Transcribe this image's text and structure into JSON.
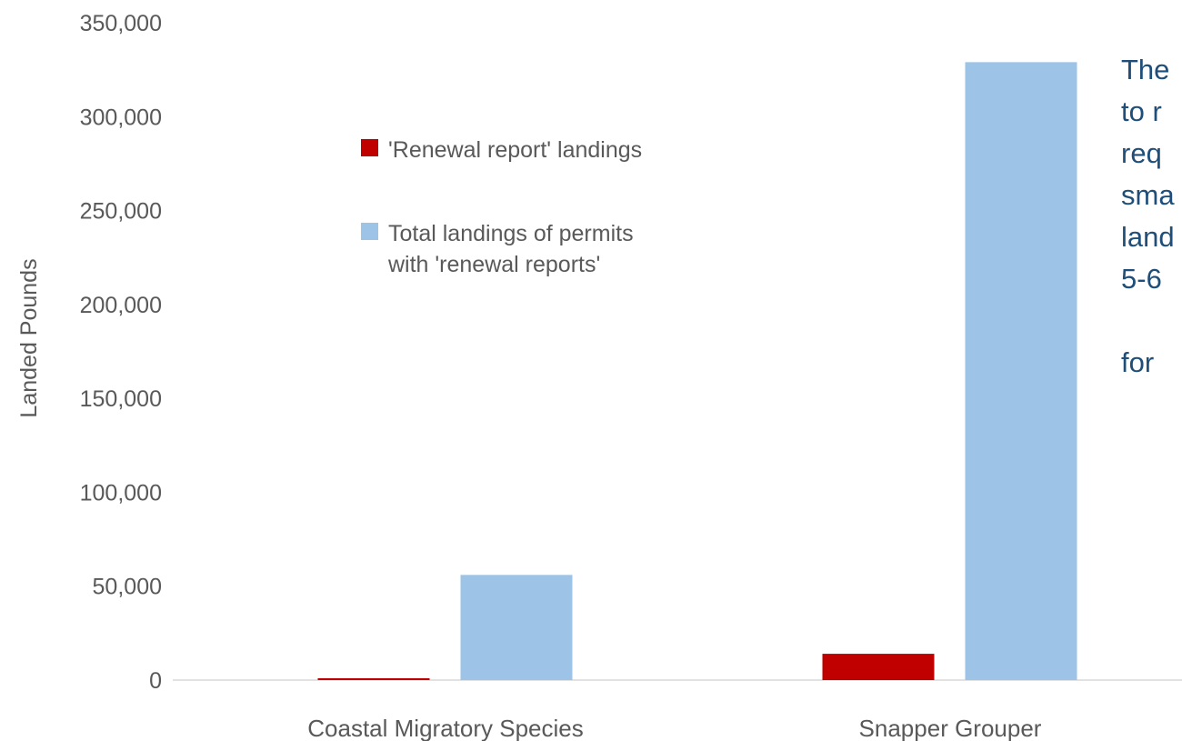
{
  "chart_data": {
    "type": "bar",
    "categories": [
      "Coastal Migratory Species",
      "Snapper Grouper"
    ],
    "series": [
      {
        "name": "'Renewal report' landings",
        "values": [
          1000,
          14000
        ]
      },
      {
        "name": "Total landings of permits with 'renewal reports'",
        "values": [
          56000,
          329000
        ]
      }
    ],
    "xlabel": "",
    "ylabel": "Landed Pounds",
    "ylim": [
      0,
      350000
    ],
    "yticks": [
      "0",
      "50,000",
      "100,000",
      "150,000",
      "200,000",
      "250,000",
      "300,000",
      "350,000"
    ],
    "grid": false,
    "legend_placement": "top-left",
    "legend_lines": [
      [
        "'Renewal report' landings"
      ],
      [
        "Total landings of permits",
        "with 'renewal reports'"
      ]
    ],
    "colors": [
      "#C00000",
      "#9DC3E6"
    ]
  },
  "side_text": [
    "The",
    "to r",
    "req",
    "sma",
    "land",
    "5-6",
    "",
    "for"
  ]
}
